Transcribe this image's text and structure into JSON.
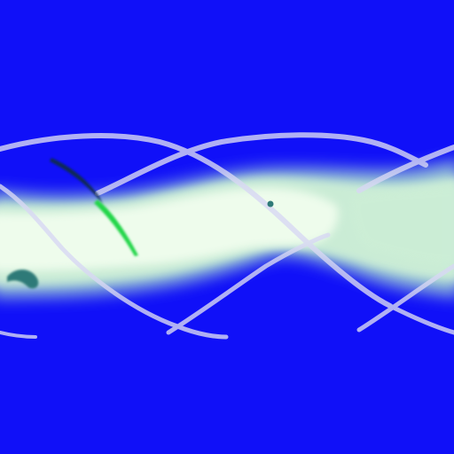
{
  "scene": {
    "background_color": "#1010f8",
    "tube_core_color": "#eefcec",
    "tube_mid_color": "#cdefd6",
    "tube_edge_color": "#a9dcd0",
    "ribbon_color": "#d8d8f4",
    "dark_stroke_color": "#0e2a52",
    "green_stroke_color": "#22d64a",
    "teal_blob_color": "#2f7a78"
  }
}
